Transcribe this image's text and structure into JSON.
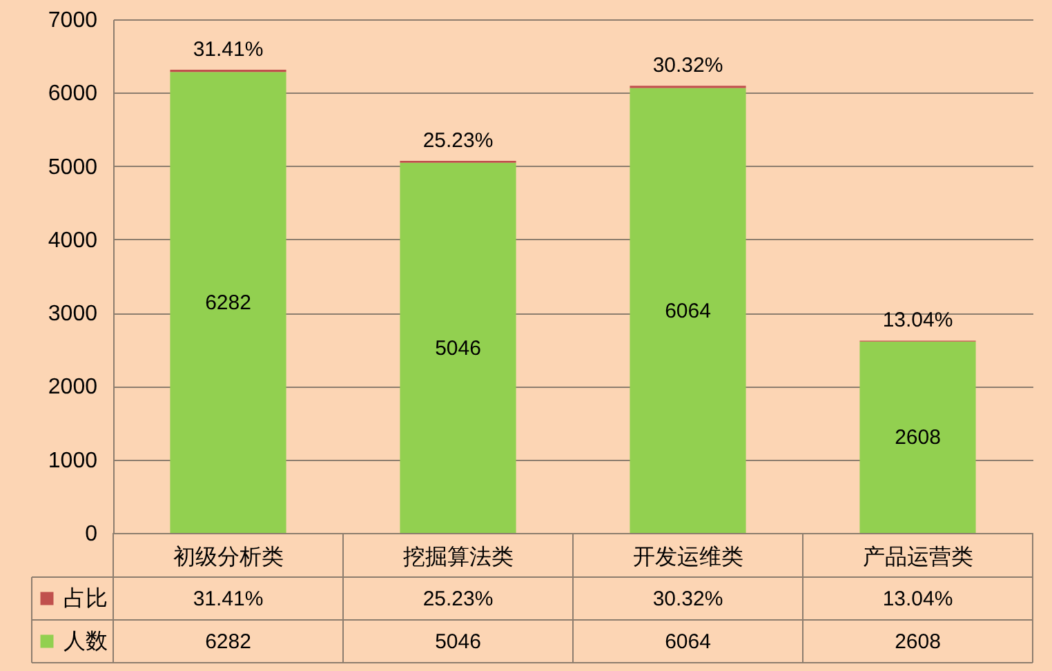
{
  "chart_data": {
    "type": "bar",
    "stacked": true,
    "categories": [
      "初级分析类",
      "挖掘算法类",
      "开发运维类",
      "产品运营类"
    ],
    "series": [
      {
        "name": "人数",
        "color": "#92d050",
        "values": [
          6282,
          5046,
          6064,
          2608
        ],
        "value_labels": [
          "6282",
          "5046",
          "6064",
          "2608"
        ]
      },
      {
        "name": "占比",
        "color": "#c0504d",
        "values": [
          31.41,
          25.23,
          30.32,
          13.04
        ],
        "value_labels": [
          "31.41%",
          "25.23%",
          "30.32%",
          "13.04%"
        ]
      }
    ],
    "ylim": [
      0,
      7000
    ],
    "yticks": [
      0,
      1000,
      2000,
      3000,
      4000,
      5000,
      6000,
      7000
    ],
    "grid": "y",
    "legend": "bottom"
  }
}
